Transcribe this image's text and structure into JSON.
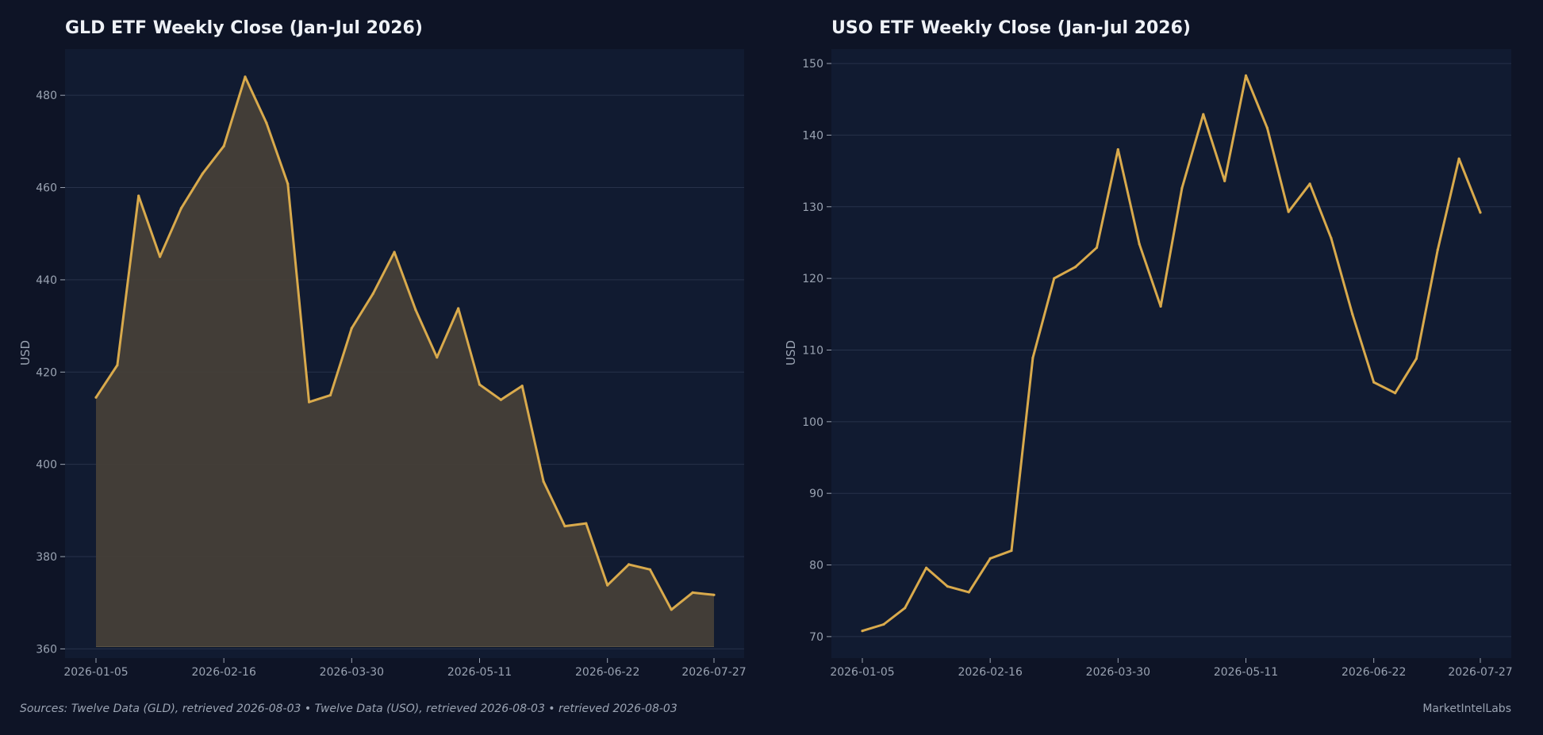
{
  "colors": {
    "background": "#0e1426",
    "plot_bg": "#111b31",
    "grid": "#27324a",
    "line": "#d9aa4c",
    "area": "#463f38",
    "text": "#eef1f6",
    "muted": "#9aa3b2"
  },
  "footer": {
    "sources": "Sources: Twelve Data (GLD), retrieved 2026-08-03  •  Twelve Data (USO), retrieved 2026-08-03  •  retrieved 2026-08-03",
    "brand": "MarketIntelLabs"
  },
  "chart_data": [
    {
      "type": "area",
      "title": "GLD ETF Weekly Close (Jan-Jul 2026)",
      "xlabel": "",
      "ylabel": "USD",
      "ylim": [
        358,
        490
      ],
      "yticks": [
        360,
        380,
        400,
        420,
        440,
        460,
        480
      ],
      "xtick_labels": [
        "2026-01-05",
        "2026-02-16",
        "2026-03-30",
        "2026-05-11",
        "2026-06-22",
        "2026-07-27"
      ],
      "grid": true,
      "x": [
        "2026-01-05",
        "2026-01-12",
        "2026-01-19",
        "2026-01-26",
        "2026-02-02",
        "2026-02-09",
        "2026-02-16",
        "2026-02-23",
        "2026-03-02",
        "2026-03-09",
        "2026-03-16",
        "2026-03-23",
        "2026-03-30",
        "2026-04-06",
        "2026-04-13",
        "2026-04-20",
        "2026-04-27",
        "2026-05-04",
        "2026-05-11",
        "2026-05-18",
        "2026-05-25",
        "2026-06-01",
        "2026-06-08",
        "2026-06-15",
        "2026-06-22",
        "2026-06-29",
        "2026-07-06",
        "2026-07-13",
        "2026-07-20",
        "2026-07-27"
      ],
      "values": [
        414.5,
        421.5,
        458.2,
        445.0,
        455.5,
        463.0,
        469.0,
        484.0,
        474.0,
        460.8,
        413.5,
        415.0,
        429.5,
        437.0,
        446.0,
        433.5,
        423.2,
        433.8,
        417.3,
        414.0,
        417.0,
        396.3,
        386.6,
        387.2,
        373.8,
        378.3,
        377.2,
        368.5,
        372.2,
        371.7
      ]
    },
    {
      "type": "line",
      "title": "USO ETF Weekly Close (Jan-Jul 2026)",
      "xlabel": "",
      "ylabel": "USD",
      "ylim": [
        67,
        152
      ],
      "yticks": [
        70,
        80,
        90,
        100,
        110,
        120,
        130,
        140,
        150
      ],
      "xtick_labels": [
        "2026-01-05",
        "2026-02-16",
        "2026-03-30",
        "2026-05-11",
        "2026-06-22",
        "2026-07-27"
      ],
      "grid": true,
      "x": [
        "2026-01-05",
        "2026-01-12",
        "2026-01-19",
        "2026-01-26",
        "2026-02-02",
        "2026-02-09",
        "2026-02-16",
        "2026-02-23",
        "2026-03-02",
        "2026-03-09",
        "2026-03-16",
        "2026-03-23",
        "2026-03-30",
        "2026-04-06",
        "2026-04-13",
        "2026-04-20",
        "2026-04-27",
        "2026-05-04",
        "2026-05-11",
        "2026-05-18",
        "2026-05-25",
        "2026-06-01",
        "2026-06-08",
        "2026-06-15",
        "2026-06-22",
        "2026-06-29",
        "2026-07-06",
        "2026-07-13",
        "2026-07-20",
        "2026-07-27"
      ],
      "values": [
        70.8,
        71.7,
        74.0,
        79.6,
        77.0,
        76.2,
        80.9,
        82.0,
        108.9,
        120.0,
        121.6,
        124.3,
        138.0,
        124.8,
        116.1,
        132.6,
        142.9,
        133.6,
        148.3,
        141.0,
        129.3,
        133.2,
        125.6,
        115.0,
        105.5,
        104.0,
        108.8,
        124.0,
        136.7,
        129.2
      ]
    }
  ]
}
